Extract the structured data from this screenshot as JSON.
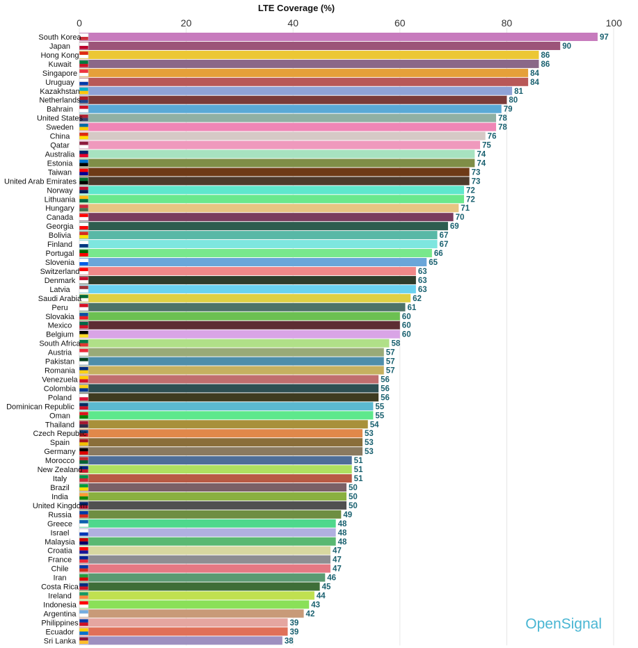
{
  "chart_data": {
    "type": "bar",
    "orientation": "horizontal",
    "title": "LTE Coverage (%)",
    "xlim": [
      0,
      100
    ],
    "x_ticks": [
      0,
      20,
      40,
      60,
      80,
      100
    ],
    "grid": true,
    "categories": [
      "South Korea",
      "Japan",
      "Hong Kong",
      "Kuwait",
      "Singapore",
      "Uruguay",
      "Kazakhstan",
      "Netherlands",
      "Bahrain",
      "United States",
      "Sweden",
      "China",
      "Qatar",
      "Australia",
      "Estonia",
      "Taiwan",
      "United Arab Emirates",
      "Norway",
      "Lithuania",
      "Hungary",
      "Canada",
      "Georgia",
      "Bolivia",
      "Finland",
      "Portugal",
      "Slovenia",
      "Switzerland",
      "Denmark",
      "Latvia",
      "Saudi Arabia",
      "Peru",
      "Slovakia",
      "Mexico",
      "Belgium",
      "South Africa",
      "Austria",
      "Pakistan",
      "Romania",
      "Venezuela",
      "Colombia",
      "Poland",
      "Dominican Republic",
      "Oman",
      "Thailand",
      "Czech Republic",
      "Spain",
      "Germany",
      "Morocco",
      "New Zealand",
      "Italy",
      "Brazil",
      "India",
      "United Kingdom",
      "Russia",
      "Greece",
      "Israel",
      "Malaysia",
      "Croatia",
      "France",
      "Chile",
      "Iran",
      "Costa Rica",
      "Ireland",
      "Indonesia",
      "Argentina",
      "Philippines",
      "Ecuador",
      "Sri Lanka"
    ],
    "values": [
      97,
      90,
      86,
      86,
      84,
      84,
      81,
      80,
      79,
      78,
      78,
      76,
      75,
      74,
      74,
      73,
      73,
      72,
      72,
      71,
      70,
      69,
      67,
      67,
      66,
      65,
      63,
      63,
      63,
      62,
      61,
      60,
      60,
      60,
      58,
      57,
      57,
      57,
      56,
      56,
      56,
      55,
      55,
      54,
      53,
      53,
      53,
      51,
      51,
      51,
      50,
      50,
      50,
      49,
      48,
      48,
      48,
      47,
      47,
      47,
      46,
      45,
      44,
      43,
      42,
      39,
      39,
      38
    ],
    "colors": [
      "#c77bbd",
      "#9c5479",
      "#ecc734",
      "#8a6888",
      "#e5a03a",
      "#b85858",
      "#8fa3d6",
      "#7a3c3a",
      "#5aa9d6",
      "#8fb0a4",
      "#ef86b6",
      "#d6c9c6",
      "#ef99bd",
      "#a7e2c0",
      "#7f8e47",
      "#6e3a16",
      "#4d3b2c",
      "#5fe7cc",
      "#6ae88c",
      "#e7c582",
      "#7a3d5e",
      "#2e5d4f",
      "#58b8a6",
      "#7ee6df",
      "#78e88c",
      "#6aa6d9",
      "#ef8888",
      "#2e3d2b",
      "#6ad2ef",
      "#dfd044",
      "#4e7368",
      "#6cc052",
      "#5d2d33",
      "#d9a4e6",
      "#b0e088",
      "#99aa78",
      "#4e8eaa",
      "#c5b060",
      "#c06e6e",
      "#2e4f52",
      "#3e3b20",
      "#5bb9d0",
      "#5ee88c",
      "#a8903a",
      "#e0884a",
      "#8a6e3a",
      "#8a7a60",
      "#4e6e98",
      "#aee060",
      "#b85a44",
      "#7a6066",
      "#8ab040",
      "#505050",
      "#6e8e42",
      "#4ed88c",
      "#b0b0e0",
      "#5ab872",
      "#d8d8a0",
      "#8e8e92",
      "#e57883",
      "#5a9a72",
      "#3e6e38",
      "#c0e050",
      "#8ae058",
      "#c89a78",
      "#e5a6a0",
      "#e07058",
      "#9e90c0"
    ],
    "flag_colors": [
      [
        "#ffffff",
        "#cd2e3a"
      ],
      [
        "#ffffff",
        "#bc002d"
      ],
      [
        "#de2910",
        "#ffffff"
      ],
      [
        "#007a3d",
        "#ce1126"
      ],
      [
        "#ef3340",
        "#ffffff"
      ],
      [
        "#ffffff",
        "#0038a8"
      ],
      [
        "#00afca",
        "#fec50c"
      ],
      [
        "#ae1c28",
        "#21468b"
      ],
      [
        "#ce1126",
        "#ffffff"
      ],
      [
        "#b22234",
        "#3c3b6e"
      ],
      [
        "#006aa7",
        "#fecc00"
      ],
      [
        "#de2910",
        "#ffde00"
      ],
      [
        "#8d1b3d",
        "#ffffff"
      ],
      [
        "#012169",
        "#e4002b"
      ],
      [
        "#0072ce",
        "#000000"
      ],
      [
        "#fe0000",
        "#000095"
      ],
      [
        "#00732f",
        "#000000"
      ],
      [
        "#ba0c2f",
        "#00205b"
      ],
      [
        "#fdb913",
        "#006a44"
      ],
      [
        "#ce2939",
        "#477050"
      ],
      [
        "#ff0000",
        "#ffffff"
      ],
      [
        "#ffffff",
        "#ff0000"
      ],
      [
        "#d52b1e",
        "#f9e300"
      ],
      [
        "#ffffff",
        "#003580"
      ],
      [
        "#006600",
        "#ff0000"
      ],
      [
        "#ffffff",
        "#005ce5"
      ],
      [
        "#ff0000",
        "#ffffff"
      ],
      [
        "#c8102e",
        "#ffffff"
      ],
      [
        "#9e3039",
        "#ffffff"
      ],
      [
        "#006c35",
        "#ffffff"
      ],
      [
        "#d91023",
        "#ffffff"
      ],
      [
        "#0b4ea2",
        "#ee1c25"
      ],
      [
        "#006847",
        "#ce1126"
      ],
      [
        "#000000",
        "#fdda24"
      ],
      [
        "#007749",
        "#de3831"
      ],
      [
        "#ed2939",
        "#ffffff"
      ],
      [
        "#01411c",
        "#ffffff"
      ],
      [
        "#002b7f",
        "#fcd116"
      ],
      [
        "#ffcc00",
        "#cf142b"
      ],
      [
        "#fcd116",
        "#003893"
      ],
      [
        "#ffffff",
        "#dc143c"
      ],
      [
        "#002d62",
        "#ce1126"
      ],
      [
        "#db161b",
        "#008000"
      ],
      [
        "#a51931",
        "#2d2a4a"
      ],
      [
        "#11457e",
        "#d7141a"
      ],
      [
        "#aa151b",
        "#f1bf00"
      ],
      [
        "#000000",
        "#dd0000"
      ],
      [
        "#c1272d",
        "#006233"
      ],
      [
        "#00247d",
        "#cc142b"
      ],
      [
        "#009246",
        "#ce2b37"
      ],
      [
        "#009c3b",
        "#ffdf00"
      ],
      [
        "#ff9933",
        "#138808"
      ],
      [
        "#012169",
        "#c8102e"
      ],
      [
        "#0039a6",
        "#d52b1e"
      ],
      [
        "#0d5eaf",
        "#ffffff"
      ],
      [
        "#ffffff",
        "#0038b8"
      ],
      [
        "#cc0001",
        "#010066"
      ],
      [
        "#ff0000",
        "#171796"
      ],
      [
        "#002395",
        "#ed2939"
      ],
      [
        "#0039a6",
        "#d52b1e"
      ],
      [
        "#239f40",
        "#da0000"
      ],
      [
        "#002b7f",
        "#ce1126"
      ],
      [
        "#169b62",
        "#ff883e"
      ],
      [
        "#ff0000",
        "#ffffff"
      ],
      [
        "#74acdf",
        "#ffffff"
      ],
      [
        "#0038a8",
        "#ce1126"
      ],
      [
        "#ffd100",
        "#0072ce"
      ],
      [
        "#8d153a",
        "#ffbe29"
      ]
    ]
  },
  "brand": {
    "logo_text": "OpenSignal",
    "logo_color": "#49b6d3"
  },
  "value_label_color": "#1a6170"
}
